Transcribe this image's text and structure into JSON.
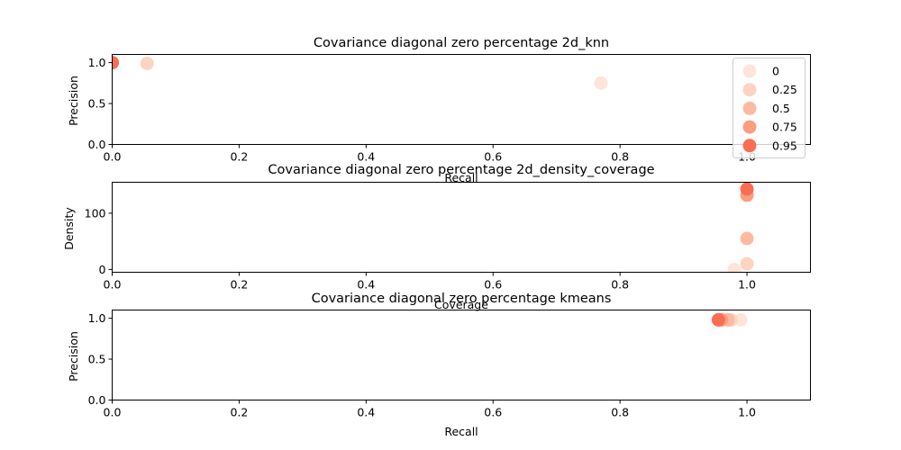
{
  "legend": {
    "title": "",
    "entries": [
      "0",
      "0.25",
      "0.5",
      "0.75",
      "0.95"
    ],
    "colors": [
      "#fee5d9",
      "#fdd3c1",
      "#fcbba1",
      "#fc9d7f",
      "#f96e53"
    ]
  },
  "chart_data": [
    {
      "type": "scatter",
      "title": "Covariance diagonal zero percentage  2d_knn",
      "xlabel": "Recall",
      "ylabel": "Precision",
      "xlim": [
        0,
        1.1
      ],
      "ylim": [
        0,
        1.1
      ],
      "xticks": [
        "0.0",
        "0.2",
        "0.4",
        "0.6",
        "0.8",
        "1.0"
      ],
      "yticks": [
        "0.0",
        "0.5",
        "1.0"
      ],
      "legend_position": "top-right",
      "series": [
        {
          "name": "0",
          "color": "#fee5d9",
          "points": [
            [
              0.77,
              0.75
            ]
          ]
        },
        {
          "name": "0.25",
          "color": "#fdd3c1",
          "points": [
            [
              0.055,
              0.99
            ]
          ]
        },
        {
          "name": "0.5",
          "color": "#fcbba1",
          "points": [
            [
              0.0,
              1.0
            ]
          ]
        },
        {
          "name": "0.75",
          "color": "#fc9d7f",
          "points": [
            [
              0.0,
              1.0
            ]
          ]
        },
        {
          "name": "0.95",
          "color": "#f96e53",
          "points": [
            [
              0.0,
              1.0
            ]
          ]
        }
      ]
    },
    {
      "type": "scatter",
      "title": "Covariance diagonal zero percentage  2d_density_coverage",
      "xlabel": "Coverage",
      "ylabel": "Density",
      "xlim": [
        0,
        1.1
      ],
      "ylim": [
        -5,
        155
      ],
      "xticks": [
        "0.0",
        "0.2",
        "0.4",
        "0.6",
        "0.8",
        "1.0"
      ],
      "yticks": [
        "0",
        "100"
      ],
      "series": [
        {
          "name": "0",
          "color": "#fee5d9",
          "points": [
            [
              0.98,
              0.0
            ]
          ]
        },
        {
          "name": "0.25",
          "color": "#fdd3c1",
          "points": [
            [
              1.0,
              10.0
            ]
          ]
        },
        {
          "name": "0.5",
          "color": "#fcbba1",
          "points": [
            [
              1.0,
              55.0
            ]
          ]
        },
        {
          "name": "0.75",
          "color": "#fc9d7f",
          "points": [
            [
              1.0,
              132.0
            ]
          ]
        },
        {
          "name": "0.95",
          "color": "#f96e53",
          "points": [
            [
              1.0,
              143.0
            ]
          ]
        }
      ]
    },
    {
      "type": "scatter",
      "title": "Covariance diagonal zero percentage  kmeans",
      "xlabel": "Recall",
      "ylabel": "Precision",
      "xlim": [
        0,
        1.1
      ],
      "ylim": [
        0,
        1.1
      ],
      "xticks": [
        "0.0",
        "0.2",
        "0.4",
        "0.6",
        "0.8",
        "1.0"
      ],
      "yticks": [
        "0.0",
        "0.5",
        "1.0"
      ],
      "series": [
        {
          "name": "0",
          "color": "#fee5d9",
          "points": [
            [
              0.99,
              0.98
            ]
          ]
        },
        {
          "name": "0.25",
          "color": "#fdd3c1",
          "points": [
            [
              0.975,
              0.98
            ]
          ]
        },
        {
          "name": "0.5",
          "color": "#fcbba1",
          "points": [
            [
              0.97,
              0.98
            ]
          ]
        },
        {
          "name": "0.75",
          "color": "#fc9d7f",
          "points": [
            [
              0.96,
              0.98
            ]
          ]
        },
        {
          "name": "0.95",
          "color": "#f96e53",
          "points": [
            [
              0.955,
              0.98
            ]
          ]
        }
      ]
    }
  ]
}
